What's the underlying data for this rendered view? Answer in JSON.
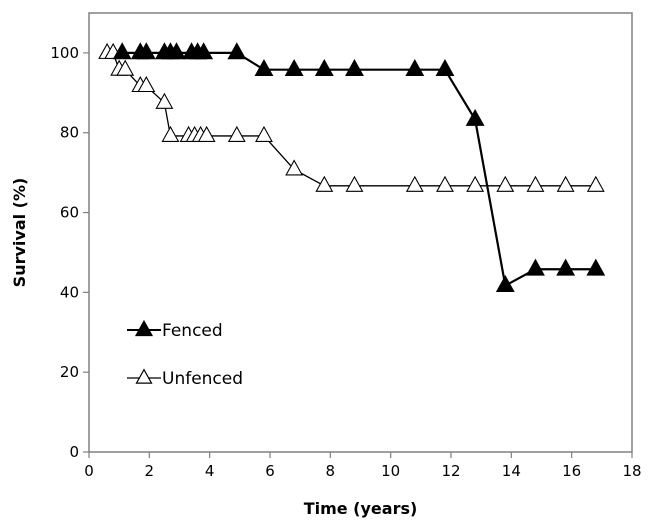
{
  "chart_data": {
    "type": "line",
    "xlabel": "Time (years)",
    "ylabel": "Survival (%)",
    "xlim": [
      0,
      18
    ],
    "ylim": [
      0,
      110
    ],
    "xticks": [
      0,
      2,
      4,
      6,
      8,
      10,
      12,
      14,
      16,
      18
    ],
    "yticks": [
      0,
      20,
      40,
      60,
      80,
      100
    ],
    "grid": false,
    "legend_position": "bottom-left",
    "series": [
      {
        "name": "Fenced",
        "marker": "filled-triangle",
        "color": "#000000",
        "x": [
          1.1,
          1.7,
          1.9,
          2.5,
          2.7,
          2.9,
          3.4,
          3.6,
          3.8,
          4.9,
          5.8,
          6.8,
          7.8,
          8.8,
          10.8,
          11.8,
          12.8,
          13.8,
          14.8,
          15.8,
          16.8
        ],
        "y": [
          100,
          100,
          100,
          100,
          100,
          100,
          100,
          100,
          100,
          100,
          95.8,
          95.8,
          95.8,
          95.8,
          95.8,
          95.8,
          83.3,
          41.7,
          45.8,
          45.8,
          45.8
        ]
      },
      {
        "name": "Unfenced",
        "marker": "open-triangle",
        "color": "#000000",
        "x": [
          0.6,
          0.8,
          1.0,
          1.2,
          1.7,
          1.9,
          2.5,
          2.7,
          3.3,
          3.5,
          3.7,
          3.9,
          4.9,
          5.8,
          6.8,
          7.8,
          8.8,
          10.8,
          11.8,
          12.8,
          13.8,
          14.8,
          15.8,
          16.8
        ],
        "y": [
          100,
          100,
          95.8,
          95.8,
          91.7,
          91.7,
          87.5,
          79.2,
          79.2,
          79.2,
          79.2,
          79.2,
          79.2,
          79.2,
          70.8,
          66.7,
          66.7,
          66.7,
          66.7,
          66.7,
          66.7,
          66.7,
          66.7,
          66.7
        ]
      }
    ]
  }
}
